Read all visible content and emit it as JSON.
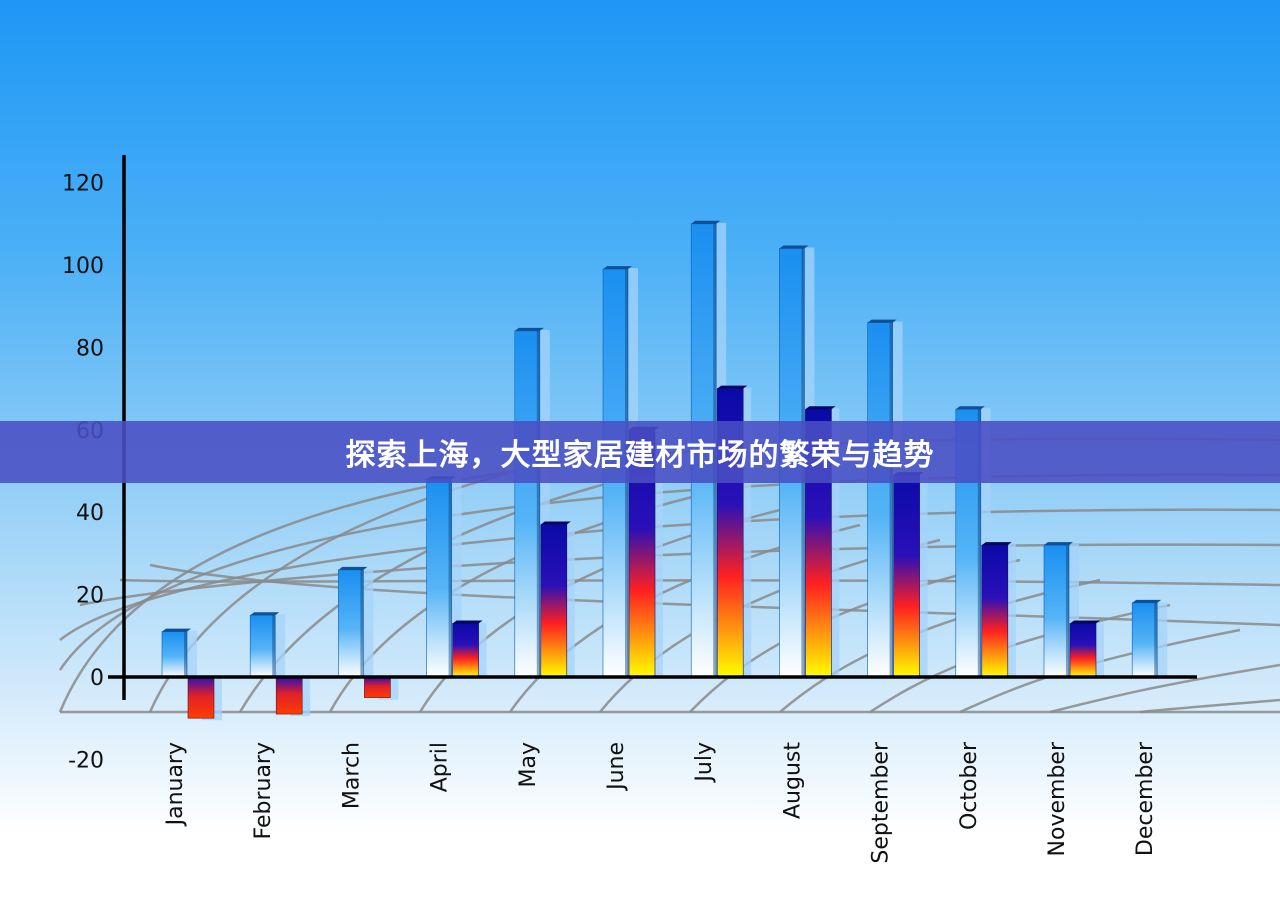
{
  "banner": {
    "title": "探索上海，大型家居建材市场的繁荣与趋势"
  },
  "colors": {
    "background_top": "#1e97f5",
    "front_bar": "#1a8ff0",
    "back_bar_dark": "#0a0aa8",
    "back_bar_red": "#ff2020",
    "back_bar_yellow": "#ffff00",
    "banner": "#4a4ec4"
  },
  "chart_data": {
    "type": "bar",
    "style": "3d-grouped",
    "categories": [
      "January",
      "February",
      "March",
      "April",
      "May",
      "June",
      "July",
      "August",
      "September",
      "October",
      "November",
      "December"
    ],
    "series": [
      {
        "values": [
          11,
          15,
          26,
          48,
          84,
          99,
          110,
          104,
          86,
          65,
          32,
          18
        ]
      },
      {
        "values": [
          -10,
          -9,
          -5,
          13,
          37,
          60,
          70,
          65,
          49,
          32,
          13,
          null
        ]
      }
    ],
    "y_ticks": [
      "120",
      "100",
      "80",
      "60",
      "40",
      "20",
      "0",
      "-20"
    ],
    "ylim": [
      -20,
      125
    ],
    "grid": "perspective floor grid",
    "legend": "none"
  }
}
